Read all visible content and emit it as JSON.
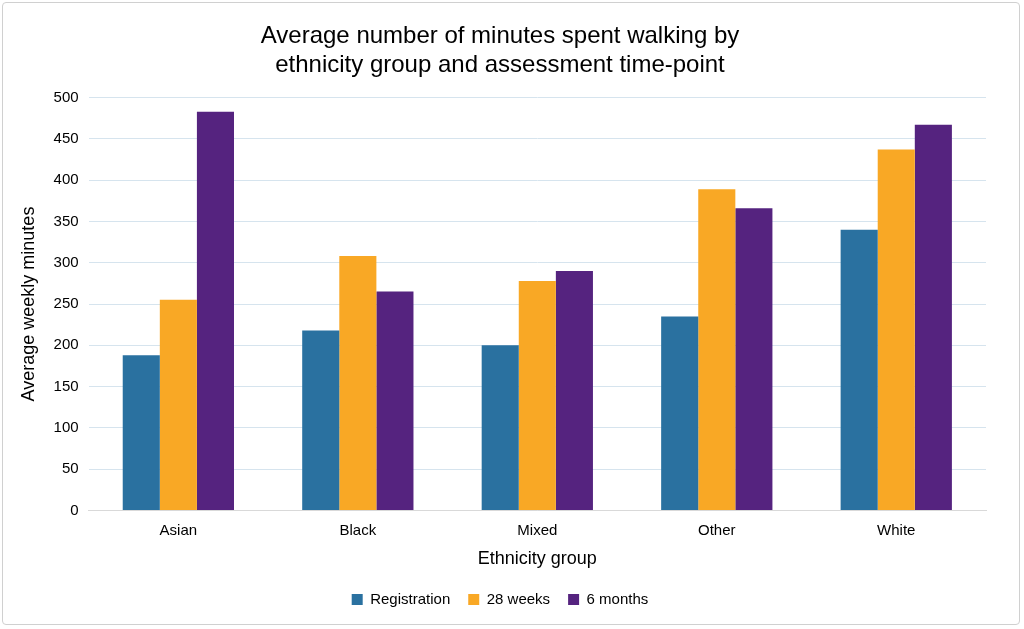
{
  "chart_data": {
    "type": "bar",
    "title": "Average number of minutes spent walking by ethnicity group and assessment time-point",
    "x_label": "Ethnicity group",
    "y_label": "Average weekly minutes",
    "categories": [
      "Asian",
      "Black",
      "Mixed",
      "Other",
      "White"
    ],
    "series": [
      {
        "name": "Registration",
        "color": "#2a71a0",
        "values": [
          188,
          218,
          200,
          235,
          340
        ]
      },
      {
        "name": "28 weeks",
        "color": "#f9a825",
        "values": [
          255,
          308,
          278,
          389,
          437
        ]
      },
      {
        "name": "6 months",
        "color": "#55237f",
        "values": [
          483,
          265,
          290,
          366,
          467
        ]
      }
    ],
    "ylim": [
      0,
      500
    ],
    "yticks": [
      0,
      50,
      100,
      150,
      200,
      250,
      300,
      350,
      400,
      450,
      500
    ],
    "grid": true,
    "legend": "bottom"
  }
}
